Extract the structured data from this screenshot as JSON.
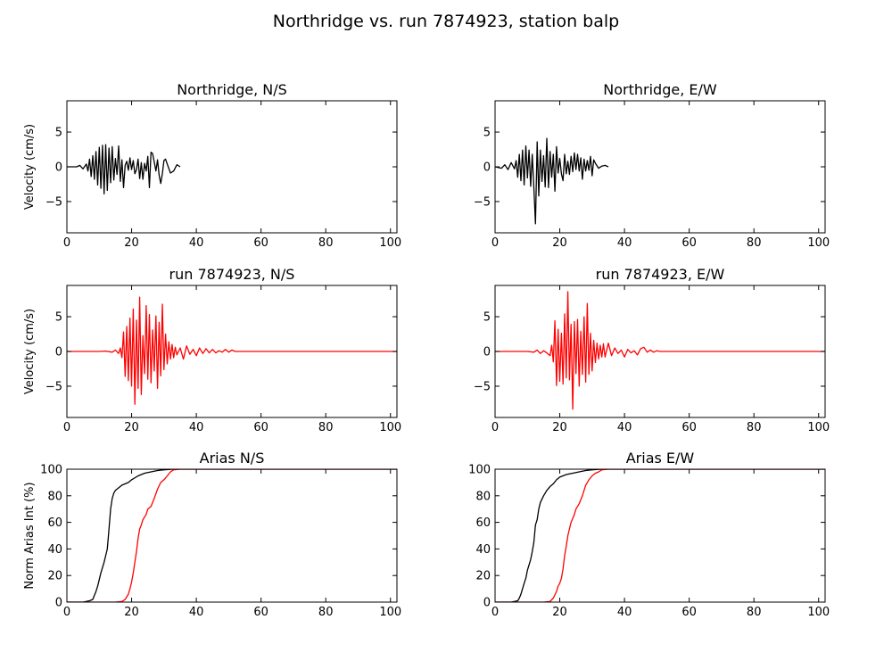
{
  "figure": {
    "title": "Northridge vs. run 7874923, station balp"
  },
  "chart_data": [
    {
      "type": "line",
      "title": "Northridge, N/S",
      "xlabel": "",
      "ylabel": "Velocity (cm/s)",
      "xlim": [
        0,
        102
      ],
      "ylim": [
        -9.5,
        9.5
      ],
      "xticks": [
        0,
        20,
        40,
        60,
        80,
        100
      ],
      "yticks": [
        -5,
        0,
        5
      ],
      "series": [
        {
          "color": "#000000",
          "x": [
            0,
            3,
            4,
            5,
            6,
            6.5,
            7,
            7.5,
            8,
            8.5,
            9,
            9.5,
            10,
            10.5,
            11,
            11.5,
            12,
            12.5,
            13,
            13.5,
            14,
            14.5,
            15,
            15.5,
            16,
            16.5,
            17,
            17.5,
            18,
            18.5,
            19,
            19.5,
            20,
            20.5,
            21,
            21.5,
            22,
            22.5,
            23,
            23.5,
            24,
            24.5,
            25,
            25.5,
            26,
            26.5,
            27,
            27.5,
            28,
            28.5,
            29,
            29.5,
            30,
            30.5,
            31,
            32,
            33,
            34,
            35
          ],
          "y": [
            0,
            0,
            0.2,
            -0.3,
            0.4,
            -0.6,
            1.1,
            -1.4,
            1.6,
            -1.8,
            2.2,
            -2.6,
            2.8,
            -3.1,
            3.1,
            -3.9,
            3.2,
            -3.4,
            2.7,
            -2.3,
            2.9,
            -1.9,
            1.2,
            -1.1,
            3.0,
            -2.1,
            1.0,
            -3.0,
            0.2,
            0.8,
            -0.5,
            1.3,
            -0.4,
            0.9,
            -1.0,
            -0.4,
            1.1,
            -1.7,
            0.6,
            -1.8,
            0.5,
            -0.6,
            1.5,
            -3.0,
            2.1,
            1.9,
            0.7,
            -0.6,
            1.0,
            -1.2,
            -2.4,
            -1.0,
            0.9,
            1.1,
            0.4,
            -0.9,
            -0.6,
            0.3,
            0
          ]
        }
      ]
    },
    {
      "type": "line",
      "title": "Northridge, E/W",
      "xlabel": "",
      "ylabel": "",
      "xlim": [
        0,
        102
      ],
      "ylim": [
        -9.5,
        9.5
      ],
      "xticks": [
        0,
        20,
        40,
        60,
        80,
        100
      ],
      "yticks": [
        -5,
        0,
        5
      ],
      "series": [
        {
          "color": "#000000",
          "x": [
            0,
            2,
            3,
            4,
            5,
            6,
            6.5,
            7,
            7.5,
            8,
            8.5,
            9,
            9.5,
            10,
            10.5,
            11,
            11.5,
            12,
            12.5,
            13,
            13.5,
            14,
            14.5,
            15,
            15.5,
            16,
            16.5,
            17,
            17.5,
            18,
            18.5,
            19,
            19.5,
            20,
            20.5,
            21,
            21.5,
            22,
            22.5,
            23,
            23.5,
            24,
            24.5,
            25,
            25.5,
            26,
            26.5,
            27,
            27.5,
            28,
            28.5,
            29,
            29.5,
            30,
            30.5,
            31,
            32,
            33,
            34,
            35
          ],
          "y": [
            0,
            -0.2,
            0.3,
            -0.4,
            0.6,
            -0.3,
            0.9,
            -1.5,
            1.8,
            -2.0,
            2.4,
            -2.6,
            3.0,
            -1.6,
            2.4,
            -2.8,
            1.8,
            -3.0,
            -8.2,
            3.6,
            -4.2,
            2.4,
            -2.1,
            1.6,
            -2.9,
            4.1,
            -3.0,
            2.2,
            -1.5,
            1.8,
            -3.5,
            2.9,
            -0.9,
            1.2,
            -1.0,
            -2.0,
            1.8,
            -1.0,
            0.8,
            -1.1,
            1.5,
            -0.7,
            2.0,
            -0.4,
            1.8,
            -0.6,
            1.3,
            -1.8,
            1.1,
            -0.6,
            0.9,
            -0.5,
            1.5,
            -1.3,
            1.0,
            0.5,
            -0.2,
            0.1,
            0.2,
            0
          ]
        }
      ]
    },
    {
      "type": "line",
      "title": "run 7874923, N/S",
      "xlabel": "",
      "ylabel": "Velocity (cm/s)",
      "xlim": [
        0,
        102
      ],
      "ylim": [
        -9.5,
        9.5
      ],
      "xticks": [
        0,
        20,
        40,
        60,
        80,
        100
      ],
      "yticks": [
        -5,
        0,
        5
      ],
      "series": [
        {
          "color": "#ff0000",
          "x": [
            0,
            10,
            12,
            14,
            15,
            16,
            16.5,
            17,
            17.5,
            18,
            18.5,
            19,
            19.5,
            20,
            20.5,
            21,
            21.5,
            22,
            22.5,
            23,
            23.5,
            24,
            24.5,
            25,
            25.5,
            26,
            26.5,
            27,
            27.5,
            28,
            28.5,
            29,
            29.5,
            30,
            30.5,
            31,
            31.5,
            32,
            32.5,
            33,
            33.5,
            34,
            35,
            36,
            37,
            38,
            39,
            40,
            41,
            42,
            43,
            44,
            45,
            46,
            47,
            48,
            49,
            50,
            51,
            52,
            54,
            60,
            70,
            80,
            90,
            102
          ],
          "y": [
            0,
            0,
            0.05,
            -0.1,
            0.2,
            -0.3,
            0.5,
            -0.9,
            2.8,
            -3.6,
            3.6,
            -4.2,
            4.8,
            -5.0,
            6.1,
            -7.6,
            4.5,
            -5.3,
            7.8,
            -6.2,
            2.3,
            -3.2,
            6.6,
            -4.0,
            5.3,
            -4.5,
            3.1,
            -2.8,
            5.1,
            -5.3,
            4.2,
            -3.5,
            6.8,
            -2.6,
            2.5,
            -1.8,
            1.4,
            -1.1,
            1.0,
            -0.9,
            0.6,
            -0.5,
            0.5,
            -1.1,
            0.8,
            -0.4,
            0.3,
            -0.6,
            0.5,
            -0.3,
            0.4,
            -0.2,
            0.3,
            -0.2,
            0.1,
            -0.1,
            0.3,
            -0.1,
            0.2,
            0,
            0,
            0,
            0,
            0,
            0,
            0
          ]
        }
      ]
    },
    {
      "type": "line",
      "title": "run 7874923, E/W",
      "xlabel": "",
      "ylabel": "",
      "xlim": [
        0,
        102
      ],
      "ylim": [
        -9.5,
        9.5
      ],
      "xticks": [
        0,
        20,
        40,
        60,
        80,
        100
      ],
      "yticks": [
        -5,
        0,
        5
      ],
      "series": [
        {
          "color": "#ff0000",
          "x": [
            0,
            10,
            12,
            13,
            14,
            15,
            16,
            17,
            17.5,
            18,
            18.5,
            19,
            19.5,
            20,
            20.5,
            21,
            21.5,
            22,
            22.5,
            23,
            23.5,
            24,
            24.5,
            25,
            25.5,
            26,
            26.5,
            27,
            27.5,
            28,
            28.5,
            29,
            29.5,
            30,
            30.5,
            31,
            31.5,
            32,
            32.5,
            33,
            33.5,
            34,
            35,
            36,
            37,
            38,
            39,
            40,
            41,
            42,
            43,
            44,
            45,
            46,
            47,
            48,
            49,
            50,
            51,
            52,
            54,
            60,
            70,
            80,
            90,
            102
          ],
          "y": [
            0,
            0,
            -0.1,
            0.2,
            -0.3,
            0.1,
            -0.2,
            -0.6,
            0.9,
            -1.5,
            4.4,
            -4.9,
            3.2,
            -4.3,
            2.6,
            -4.7,
            5.4,
            -3.8,
            8.6,
            -4.1,
            3.9,
            -8.3,
            4.3,
            -3.2,
            4.6,
            -5.0,
            2.9,
            -3.3,
            5.0,
            -4.4,
            6.9,
            -3.3,
            2.6,
            -2.8,
            1.6,
            -1.6,
            1.2,
            -1.1,
            0.9,
            -0.8,
            1.1,
            -0.8,
            1.2,
            -0.6,
            0.5,
            -0.3,
            0.2,
            -0.8,
            0.3,
            -0.2,
            0.1,
            -0.5,
            0.4,
            0.6,
            -0.1,
            0.2,
            -0.1,
            0.1,
            0,
            0,
            0,
            0,
            0,
            0,
            0,
            0
          ]
        }
      ]
    },
    {
      "type": "line",
      "title": "Arias N/S",
      "xlabel": "",
      "ylabel": "Norm Arias Int (%)",
      "xlim": [
        0,
        102
      ],
      "ylim": [
        0,
        100
      ],
      "xticks": [
        0,
        20,
        40,
        60,
        80,
        100
      ],
      "yticks": [
        0,
        20,
        40,
        60,
        80,
        100
      ],
      "series": [
        {
          "color": "#000000",
          "x": [
            0,
            5,
            6,
            7,
            8,
            8.5,
            9,
            9.5,
            10,
            10.5,
            11,
            11.5,
            12,
            12.5,
            13,
            13.5,
            14,
            14.5,
            15,
            16,
            17,
            18,
            19,
            20,
            22,
            24,
            26,
            28,
            30,
            33,
            35,
            102
          ],
          "y": [
            0,
            0,
            0.5,
            1,
            2,
            5,
            8,
            12,
            17,
            22,
            26,
            30,
            35,
            40,
            55,
            70,
            78,
            82,
            84,
            86,
            88,
            89,
            90,
            92,
            95,
            97,
            98,
            99,
            99.5,
            100,
            100,
            100
          ]
        },
        {
          "color": "#ff0000",
          "x": [
            0,
            15,
            17,
            18,
            19,
            19.5,
            20,
            20.5,
            21,
            21.5,
            22,
            22.5,
            23,
            23.5,
            24,
            24.5,
            25,
            26,
            27,
            28,
            29,
            30,
            31,
            32,
            33,
            35,
            102
          ],
          "y": [
            0,
            0,
            0.5,
            2,
            6,
            10,
            15,
            22,
            30,
            38,
            48,
            55,
            58,
            62,
            64,
            66,
            70,
            72,
            78,
            85,
            90,
            92,
            95,
            98,
            99.5,
            100,
            100
          ]
        }
      ]
    },
    {
      "type": "line",
      "title": "Arias E/W",
      "xlabel": "",
      "ylabel": "",
      "xlim": [
        0,
        102
      ],
      "ylim": [
        0,
        100
      ],
      "xticks": [
        0,
        20,
        40,
        60,
        80,
        100
      ],
      "yticks": [
        0,
        20,
        40,
        60,
        80,
        100
      ],
      "series": [
        {
          "color": "#000000",
          "x": [
            0,
            5,
            6,
            7,
            7.5,
            8,
            8.5,
            9,
            9.5,
            10,
            10.5,
            11,
            11.5,
            12,
            12.5,
            13,
            13.5,
            14,
            15,
            16,
            17,
            18,
            19,
            20,
            22,
            24,
            26,
            28,
            30,
            33,
            35,
            102
          ],
          "y": [
            0,
            0,
            0.5,
            1,
            3,
            6,
            10,
            14,
            18,
            24,
            28,
            32,
            38,
            45,
            58,
            62,
            70,
            75,
            80,
            84,
            87,
            89,
            92,
            94,
            96,
            97,
            98,
            99,
            99.5,
            100,
            100,
            100
          ]
        },
        {
          "color": "#ff0000",
          "x": [
            0,
            15,
            17,
            18,
            19,
            19.5,
            20,
            20.5,
            21,
            21.5,
            22,
            22.5,
            23,
            23.5,
            24,
            24.5,
            25,
            26,
            27,
            28,
            29,
            30,
            31,
            32,
            33,
            35,
            102
          ],
          "y": [
            0,
            0,
            0.5,
            3,
            8,
            12,
            14,
            18,
            25,
            35,
            42,
            50,
            55,
            60,
            63,
            66,
            70,
            74,
            80,
            88,
            92,
            95,
            97,
            98,
            99.5,
            100,
            100
          ]
        }
      ]
    }
  ]
}
